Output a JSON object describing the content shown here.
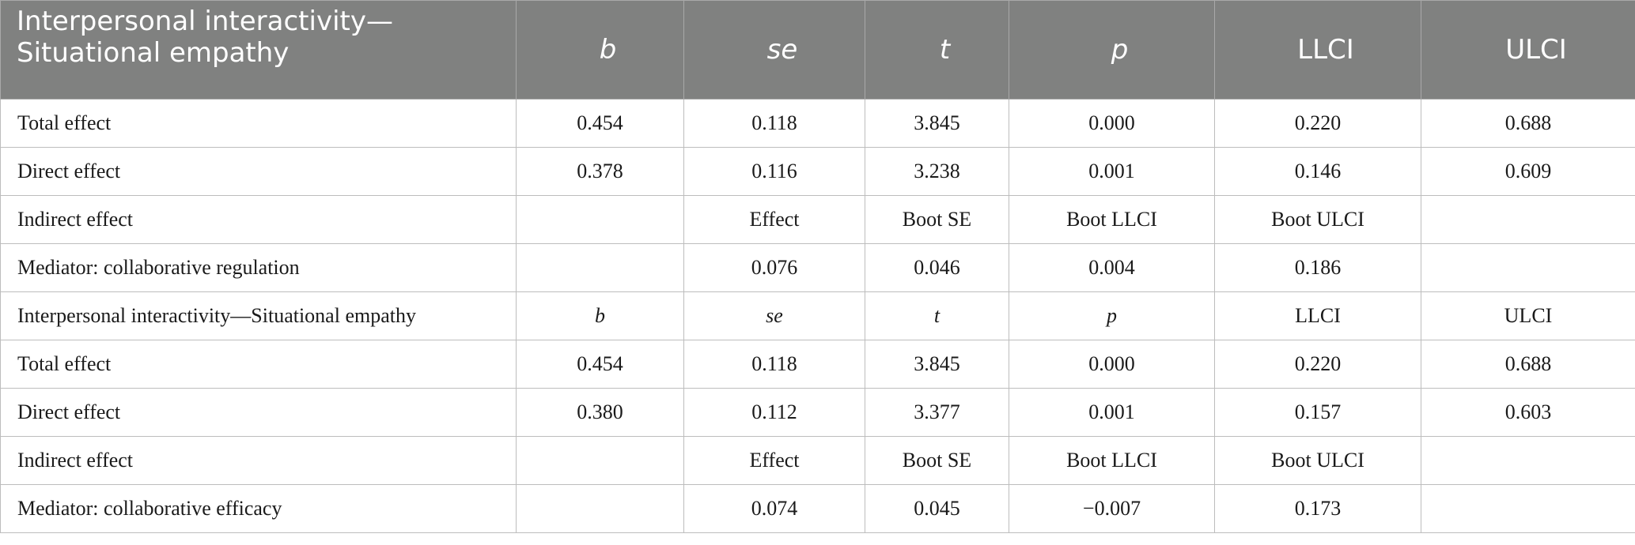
{
  "header": [
    "Interpersonal interactivity—Situational empathy",
    "b",
    "se",
    "t",
    "p",
    "LLCI",
    "ULCI"
  ],
  "rows": [
    [
      "Total effect",
      "0.454",
      "0.118",
      "3.845",
      "0.000",
      "0.220",
      "0.688"
    ],
    [
      "Direct effect",
      "0.378",
      "0.116",
      "3.238",
      "0.001",
      "0.146",
      "0.609"
    ],
    [
      "Indirect effect",
      "",
      "Effect",
      "Boot SE",
      "Boot LLCI",
      "Boot ULCI",
      ""
    ],
    [
      "Mediator: collaborative regulation",
      "",
      "0.076",
      "0.046",
      "0.004",
      "0.186",
      ""
    ],
    [
      "Interpersonal interactivity—Situational empathy",
      "b",
      "se",
      "t",
      "p",
      "LLCI",
      "ULCI"
    ],
    [
      "Total effect",
      "0.454",
      "0.118",
      "3.845",
      "0.000",
      "0.220",
      "0.688"
    ],
    [
      "Direct effect",
      "0.380",
      "0.112",
      "3.377",
      "0.001",
      "0.157",
      "0.603"
    ],
    [
      "Indirect effect",
      "",
      "Effect",
      "Boot SE",
      "Boot LLCI",
      "Boot ULCI",
      ""
    ],
    [
      "Mediator: collaborative efficacy",
      "",
      "0.074",
      "0.045",
      "−0.007",
      "0.173",
      ""
    ]
  ]
}
